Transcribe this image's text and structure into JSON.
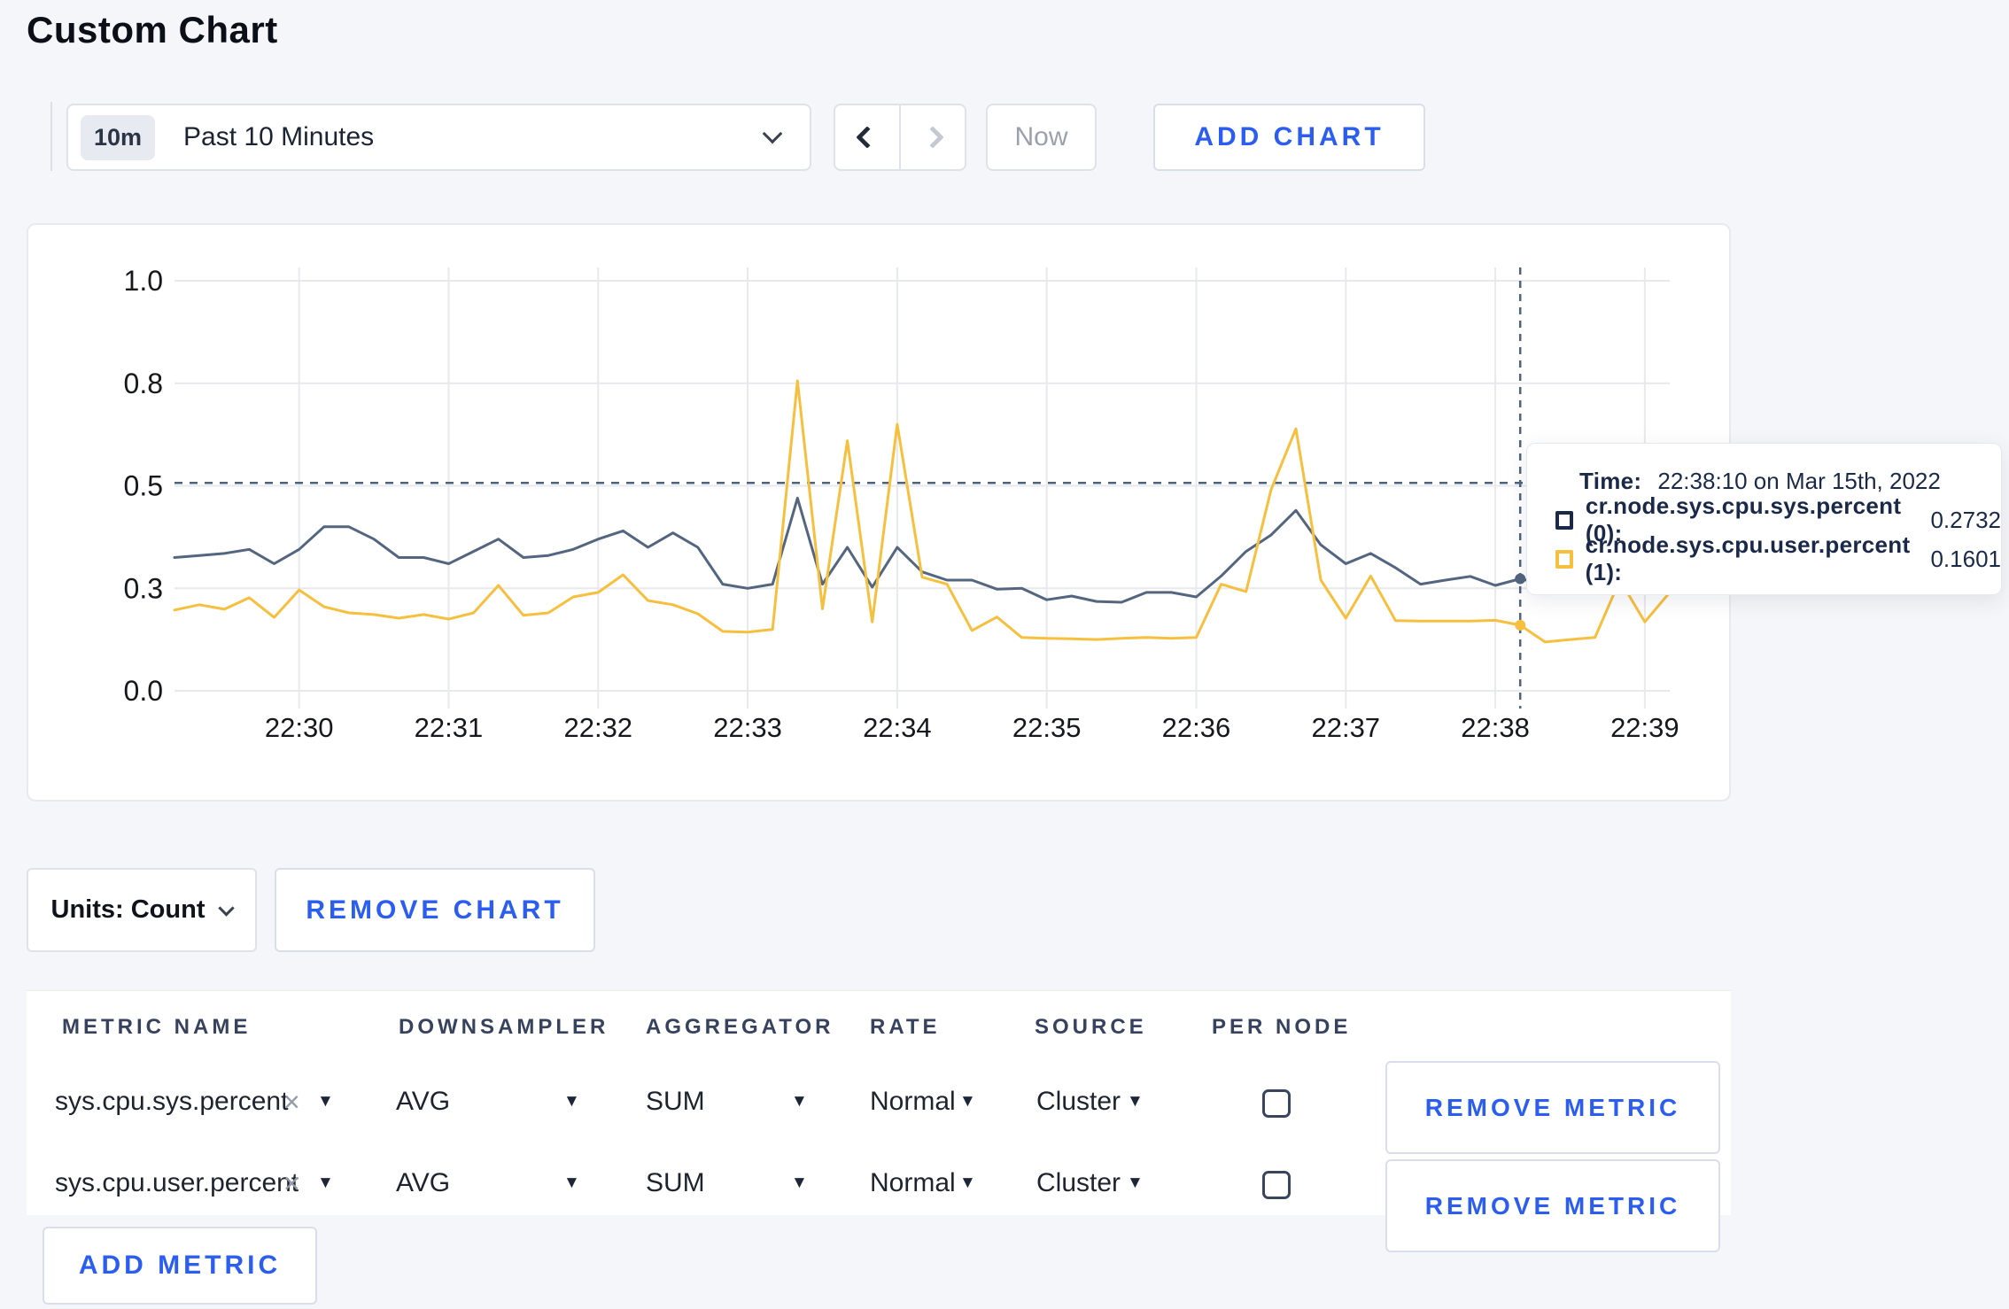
{
  "theme": {
    "accent_blue": "#2b5df0",
    "series_sys_color": "#53657f",
    "series_user_color": "#f6bf3e",
    "crosshair_color": "#4f637d",
    "grid_color": "#e8e9ec"
  },
  "page": {
    "title": "Custom Chart"
  },
  "toolbar": {
    "time_window_badge": "10m",
    "time_window_label": "Past 10 Minutes",
    "now_label": "Now",
    "add_chart_label": "ADD CHART"
  },
  "chart_data": {
    "type": "line",
    "title": "",
    "xlabel": "",
    "ylabel": "",
    "ylim": [
      0,
      1
    ],
    "grid": true,
    "legend_position": "tooltip",
    "x_start": "22:29:10",
    "x_end": "22:39:10",
    "interval_seconds": 10,
    "x_ticks": [
      "22:30",
      "22:31",
      "22:32",
      "22:33",
      "22:34",
      "22:35",
      "22:36",
      "22:37",
      "22:38",
      "22:39"
    ],
    "x_tick_times_sec": [
      50,
      110,
      170,
      230,
      290,
      350,
      410,
      470,
      530,
      590
    ],
    "y_tick_labels": [
      "1.0",
      "0.8",
      "0.5",
      "0.3",
      "0.0"
    ],
    "y_tick_values": [
      1.0,
      0.75,
      0.5,
      0.25,
      0.0
    ],
    "threshold_line": 0.507,
    "hover_index": 54,
    "hover_time": "22:38:10",
    "series": [
      {
        "name": "cr.node.sys.cpu.sys.percent (0)",
        "color": "#53657f",
        "values": [
          0.325,
          0.33,
          0.335,
          0.345,
          0.31,
          0.345,
          0.4,
          0.4,
          0.37,
          0.325,
          0.325,
          0.31,
          0.34,
          0.37,
          0.325,
          0.33,
          0.345,
          0.37,
          0.39,
          0.35,
          0.385,
          0.35,
          0.26,
          0.25,
          0.26,
          0.47,
          0.26,
          0.35,
          0.253,
          0.35,
          0.29,
          0.27,
          0.27,
          0.248,
          0.25,
          0.222,
          0.231,
          0.218,
          0.216,
          0.24,
          0.24,
          0.229,
          0.28,
          0.34,
          0.38,
          0.44,
          0.356,
          0.31,
          0.335,
          0.3,
          0.26,
          0.27,
          0.279,
          0.257,
          0.2732,
          0.26,
          0.25,
          0.26,
          0.28,
          0.27,
          0.27
        ]
      },
      {
        "name": "cr.node.sys.cpu.user.percent (1)",
        "color": "#f6bf3e",
        "values": [
          0.197,
          0.21,
          0.199,
          0.227,
          0.179,
          0.246,
          0.205,
          0.19,
          0.186,
          0.177,
          0.186,
          0.175,
          0.19,
          0.257,
          0.184,
          0.19,
          0.229,
          0.24,
          0.283,
          0.22,
          0.21,
          0.188,
          0.145,
          0.143,
          0.15,
          0.756,
          0.2,
          0.61,
          0.168,
          0.65,
          0.277,
          0.26,
          0.147,
          0.18,
          0.13,
          0.128,
          0.127,
          0.125,
          0.128,
          0.13,
          0.128,
          0.13,
          0.26,
          0.242,
          0.49,
          0.639,
          0.27,
          0.177,
          0.28,
          0.171,
          0.17,
          0.17,
          0.17,
          0.172,
          0.1601,
          0.119,
          0.125,
          0.13,
          0.27,
          0.168,
          0.24
        ]
      }
    ]
  },
  "tooltip": {
    "time_label": "Time:",
    "time_value": "22:38:10 on Mar 15th, 2022",
    "rows": [
      {
        "label": "cr.node.sys.cpu.sys.percent (0):",
        "value": "0.2732"
      },
      {
        "label": "cr.node.sys.cpu.user.percent (1):",
        "value": "0.1601"
      }
    ]
  },
  "units_row": {
    "units_label": "Units: Count",
    "remove_chart_label": "REMOVE CHART"
  },
  "metrics_table": {
    "headers": [
      "METRIC NAME",
      "DOWNSAMPLER",
      "AGGREGATOR",
      "RATE",
      "SOURCE",
      "PER NODE"
    ],
    "remove_icon": "×",
    "rows": [
      {
        "metric": "sys.cpu.sys.percent",
        "downsampler": "AVG",
        "aggregator": "SUM",
        "rate": "Normal",
        "source": "Cluster",
        "per_node_checked": false,
        "remove_label": "REMOVE METRIC"
      },
      {
        "metric": "sys.cpu.user.percent",
        "downsampler": "AVG",
        "aggregator": "SUM",
        "rate": "Normal",
        "source": "Cluster",
        "per_node_checked": false,
        "remove_label": "REMOVE METRIC"
      }
    ],
    "add_metric_label": "ADD METRIC"
  }
}
